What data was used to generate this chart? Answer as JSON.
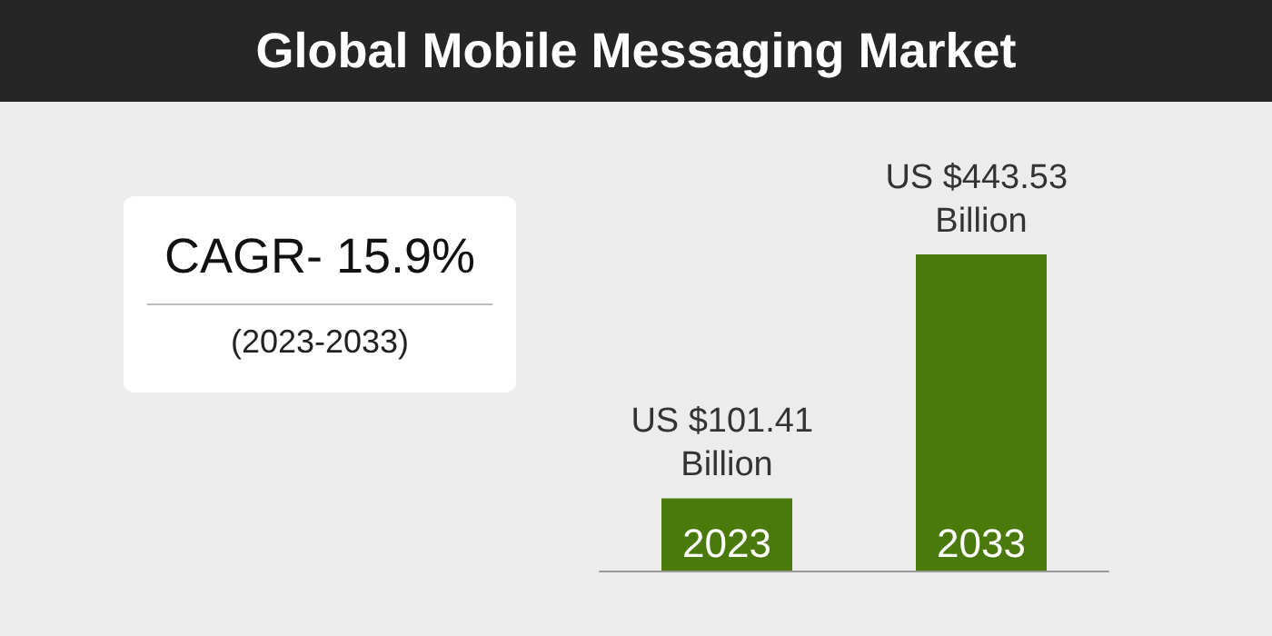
{
  "chart_data": {
    "type": "bar",
    "title": "Global Mobile Messaging Market",
    "categories": [
      "2023",
      "2033"
    ],
    "values": [
      101.41,
      443.53
    ],
    "value_labels": [
      "US $101.41 Billion",
      "US $443.53 Billion"
    ],
    "color": "#4a7a0c",
    "annotations": [
      "CAGR- 15.9%",
      "(2023-2033)"
    ]
  }
}
